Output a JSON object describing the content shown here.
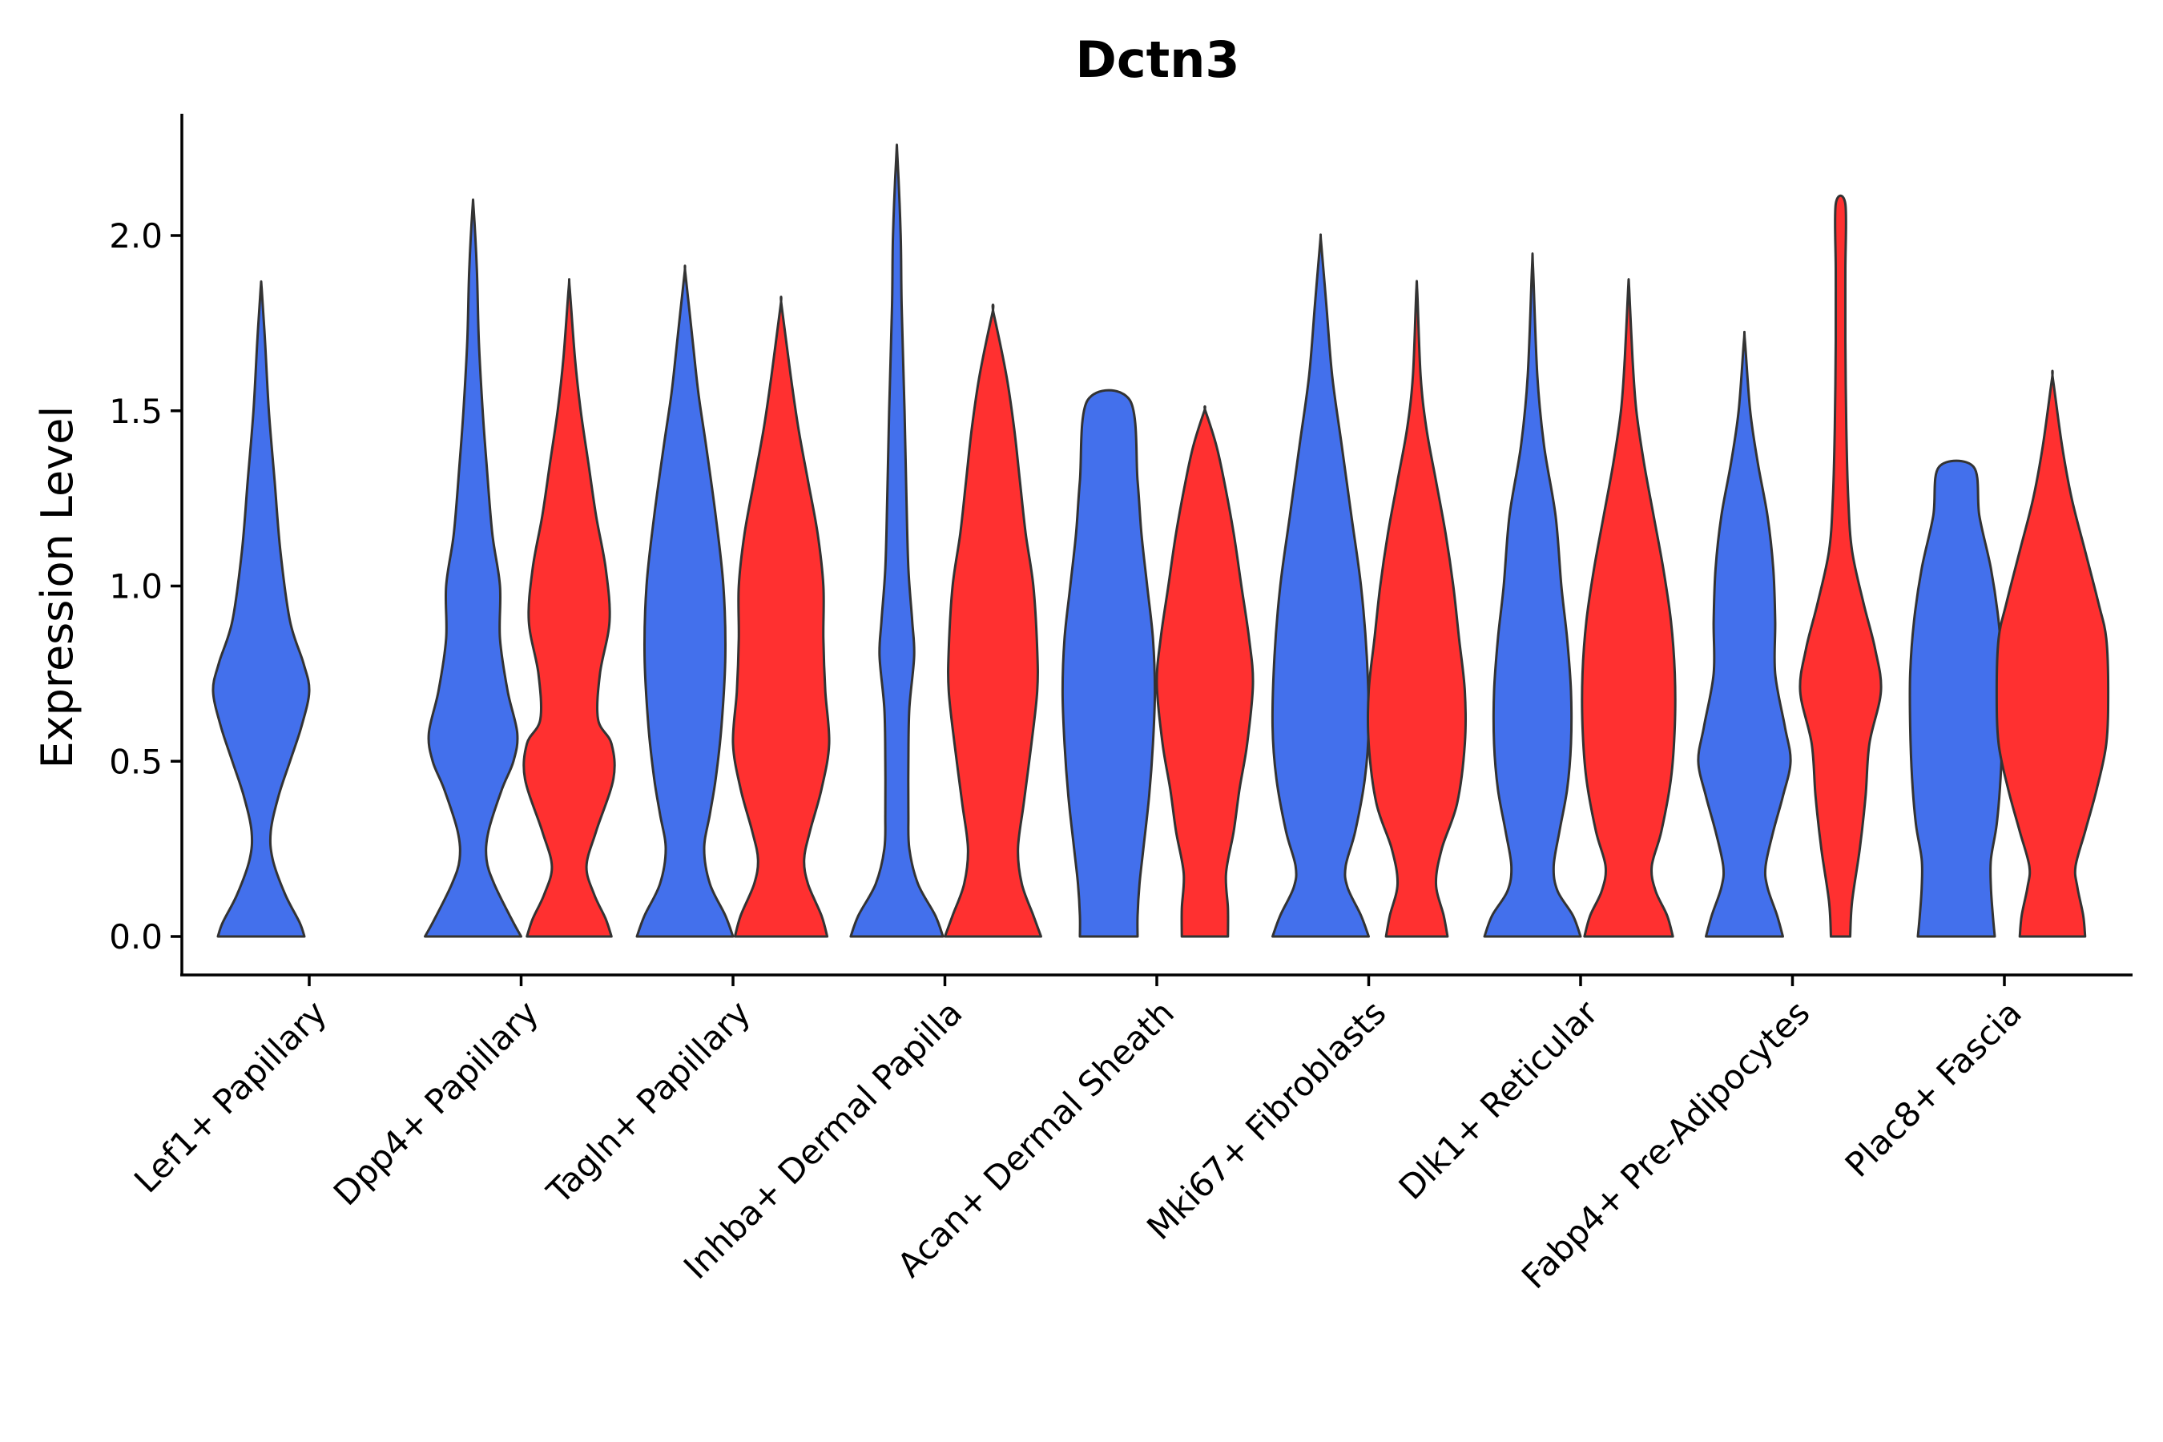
{
  "chart_data": {
    "type": "violin",
    "title": "Dctn3",
    "xlabel": "",
    "ylabel": "Expression Level",
    "ylim": [
      -0.11,
      2.35
    ],
    "yticks": [
      0.0,
      0.5,
      1.0,
      1.5,
      2.0
    ],
    "ytick_labels": [
      "0.0",
      "0.5",
      "1.0",
      "1.5",
      "2.0"
    ],
    "colors": {
      "group1": "#4370EC",
      "group2": "#FF3030"
    },
    "categories": [
      "Lef1+ Papillary",
      "Dpp4+ Papillary",
      "Tagln+ Papillary",
      "Inhba+ Dermal Papilla",
      "Acan+ Dermal Sheath",
      "Mki67+ Fibroblasts",
      "Dlk1+ Reticular",
      "Fabp4+ Pre-Adipocytes",
      "Plac8+ Fascia"
    ],
    "violins": [
      {
        "category": "Lef1+ Papillary",
        "group": 1,
        "max": 1.85,
        "profile": [
          [
            0,
            0.45
          ],
          [
            0.04,
            0.4
          ],
          [
            0.12,
            0.25
          ],
          [
            0.22,
            0.12
          ],
          [
            0.3,
            0.1
          ],
          [
            0.4,
            0.18
          ],
          [
            0.5,
            0.3
          ],
          [
            0.6,
            0.42
          ],
          [
            0.7,
            0.5
          ],
          [
            0.78,
            0.44
          ],
          [
            0.9,
            0.3
          ],
          [
            1.1,
            0.2
          ],
          [
            1.3,
            0.14
          ],
          [
            1.5,
            0.08
          ],
          [
            1.7,
            0.04
          ],
          [
            1.85,
            0.005
          ]
        ]
      },
      {
        "category": "Dpp4+ Papillary",
        "group": 1,
        "max": 2.08,
        "profile": [
          [
            0,
            0.5
          ],
          [
            0.05,
            0.4
          ],
          [
            0.15,
            0.22
          ],
          [
            0.22,
            0.14
          ],
          [
            0.3,
            0.16
          ],
          [
            0.42,
            0.3
          ],
          [
            0.5,
            0.42
          ],
          [
            0.58,
            0.46
          ],
          [
            0.7,
            0.36
          ],
          [
            0.85,
            0.28
          ],
          [
            1.0,
            0.28
          ],
          [
            1.15,
            0.2
          ],
          [
            1.35,
            0.14
          ],
          [
            1.5,
            0.1
          ],
          [
            1.7,
            0.06
          ],
          [
            1.9,
            0.04
          ],
          [
            2.08,
            0.005
          ]
        ]
      },
      {
        "category": "Dpp4+ Papillary",
        "group": 2,
        "max": 1.85,
        "profile": [
          [
            0,
            0.44
          ],
          [
            0.05,
            0.38
          ],
          [
            0.12,
            0.26
          ],
          [
            0.2,
            0.18
          ],
          [
            0.3,
            0.28
          ],
          [
            0.45,
            0.46
          ],
          [
            0.55,
            0.44
          ],
          [
            0.62,
            0.3
          ],
          [
            0.75,
            0.32
          ],
          [
            0.9,
            0.42
          ],
          [
            1.05,
            0.38
          ],
          [
            1.2,
            0.28
          ],
          [
            1.35,
            0.2
          ],
          [
            1.5,
            0.12
          ],
          [
            1.65,
            0.06
          ],
          [
            1.85,
            0.005
          ]
        ]
      },
      {
        "category": "Tagln+ Papillary",
        "group": 1,
        "max": 1.89,
        "profile": [
          [
            0,
            0.5
          ],
          [
            0.06,
            0.42
          ],
          [
            0.15,
            0.26
          ],
          [
            0.25,
            0.2
          ],
          [
            0.35,
            0.26
          ],
          [
            0.45,
            0.32
          ],
          [
            0.6,
            0.38
          ],
          [
            0.8,
            0.42
          ],
          [
            1.0,
            0.4
          ],
          [
            1.2,
            0.32
          ],
          [
            1.4,
            0.22
          ],
          [
            1.55,
            0.14
          ],
          [
            1.7,
            0.08
          ],
          [
            1.89,
            0.005
          ]
        ]
      },
      {
        "category": "Tagln+ Papillary",
        "group": 2,
        "max": 1.8,
        "profile": [
          [
            0,
            0.48
          ],
          [
            0.06,
            0.42
          ],
          [
            0.15,
            0.28
          ],
          [
            0.22,
            0.24
          ],
          [
            0.3,
            0.3
          ],
          [
            0.42,
            0.42
          ],
          [
            0.55,
            0.5
          ],
          [
            0.7,
            0.46
          ],
          [
            0.85,
            0.44
          ],
          [
            1.0,
            0.44
          ],
          [
            1.15,
            0.38
          ],
          [
            1.3,
            0.28
          ],
          [
            1.45,
            0.18
          ],
          [
            1.6,
            0.1
          ],
          [
            1.8,
            0.005
          ]
        ]
      },
      {
        "category": "Inhba+ Dermal Papilla",
        "group": 1,
        "max": 2.23,
        "profile": [
          [
            0,
            0.48
          ],
          [
            0.06,
            0.4
          ],
          [
            0.15,
            0.22
          ],
          [
            0.25,
            0.13
          ],
          [
            0.35,
            0.12
          ],
          [
            0.5,
            0.12
          ],
          [
            0.65,
            0.13
          ],
          [
            0.8,
            0.18
          ],
          [
            0.9,
            0.16
          ],
          [
            1.05,
            0.12
          ],
          [
            1.25,
            0.1
          ],
          [
            1.5,
            0.08
          ],
          [
            1.8,
            0.05
          ],
          [
            2.0,
            0.04
          ],
          [
            2.23,
            0.005
          ]
        ]
      },
      {
        "category": "Inhba+ Dermal Papilla",
        "group": 2,
        "max": 1.78,
        "profile": [
          [
            0,
            0.5
          ],
          [
            0.06,
            0.42
          ],
          [
            0.15,
            0.3
          ],
          [
            0.25,
            0.26
          ],
          [
            0.38,
            0.32
          ],
          [
            0.55,
            0.4
          ],
          [
            0.7,
            0.46
          ],
          [
            0.82,
            0.46
          ],
          [
            1.0,
            0.42
          ],
          [
            1.15,
            0.34
          ],
          [
            1.3,
            0.28
          ],
          [
            1.45,
            0.22
          ],
          [
            1.6,
            0.14
          ],
          [
            1.78,
            0.005
          ]
        ]
      },
      {
        "category": "Acan+ Dermal Sheath",
        "group": 1,
        "max": 1.53,
        "profile": [
          [
            0,
            0.3
          ],
          [
            0.06,
            0.3
          ],
          [
            0.15,
            0.32
          ],
          [
            0.25,
            0.36
          ],
          [
            0.4,
            0.42
          ],
          [
            0.55,
            0.46
          ],
          [
            0.7,
            0.48
          ],
          [
            0.85,
            0.46
          ],
          [
            1.0,
            0.4
          ],
          [
            1.15,
            0.34
          ],
          [
            1.3,
            0.3
          ],
          [
            1.53,
            0.22
          ]
        ]
      },
      {
        "category": "Acan+ Dermal Sheath",
        "group": 2,
        "max": 1.5,
        "profile": [
          [
            0,
            0.24
          ],
          [
            0.08,
            0.24
          ],
          [
            0.18,
            0.22
          ],
          [
            0.3,
            0.3
          ],
          [
            0.42,
            0.36
          ],
          [
            0.55,
            0.44
          ],
          [
            0.72,
            0.5
          ],
          [
            0.85,
            0.46
          ],
          [
            1.0,
            0.38
          ],
          [
            1.15,
            0.3
          ],
          [
            1.3,
            0.2
          ],
          [
            1.4,
            0.12
          ],
          [
            1.5,
            0.005
          ]
        ]
      },
      {
        "category": "Mki67+ Fibroblasts",
        "group": 1,
        "max": 1.98,
        "profile": [
          [
            0,
            0.5
          ],
          [
            0.06,
            0.42
          ],
          [
            0.14,
            0.28
          ],
          [
            0.2,
            0.26
          ],
          [
            0.3,
            0.36
          ],
          [
            0.45,
            0.46
          ],
          [
            0.6,
            0.5
          ],
          [
            0.8,
            0.48
          ],
          [
            1.0,
            0.42
          ],
          [
            1.2,
            0.32
          ],
          [
            1.4,
            0.22
          ],
          [
            1.6,
            0.12
          ],
          [
            1.8,
            0.06
          ],
          [
            1.98,
            0.005
          ]
        ]
      },
      {
        "category": "Mki67+ Fibroblasts",
        "group": 2,
        "max": 1.84,
        "profile": [
          [
            0,
            0.32
          ],
          [
            0.06,
            0.28
          ],
          [
            0.15,
            0.2
          ],
          [
            0.25,
            0.26
          ],
          [
            0.38,
            0.42
          ],
          [
            0.55,
            0.5
          ],
          [
            0.7,
            0.5
          ],
          [
            0.85,
            0.44
          ],
          [
            1.0,
            0.38
          ],
          [
            1.15,
            0.3
          ],
          [
            1.3,
            0.2
          ],
          [
            1.45,
            0.1
          ],
          [
            1.6,
            0.04
          ],
          [
            1.84,
            0.005
          ]
        ]
      },
      {
        "category": "Dlk1+ Reticular",
        "group": 1,
        "max": 1.91,
        "profile": [
          [
            0,
            0.5
          ],
          [
            0.06,
            0.42
          ],
          [
            0.13,
            0.26
          ],
          [
            0.2,
            0.22
          ],
          [
            0.3,
            0.28
          ],
          [
            0.42,
            0.36
          ],
          [
            0.55,
            0.4
          ],
          [
            0.7,
            0.4
          ],
          [
            0.85,
            0.36
          ],
          [
            1.0,
            0.3
          ],
          [
            1.2,
            0.24
          ],
          [
            1.4,
            0.12
          ],
          [
            1.6,
            0.05
          ],
          [
            1.91,
            0.005
          ]
        ]
      },
      {
        "category": "Dlk1+ Reticular",
        "group": 2,
        "max": 1.85,
        "profile": [
          [
            0,
            0.46
          ],
          [
            0.06,
            0.4
          ],
          [
            0.13,
            0.28
          ],
          [
            0.2,
            0.24
          ],
          [
            0.3,
            0.34
          ],
          [
            0.45,
            0.44
          ],
          [
            0.6,
            0.48
          ],
          [
            0.75,
            0.48
          ],
          [
            0.9,
            0.44
          ],
          [
            1.05,
            0.36
          ],
          [
            1.2,
            0.26
          ],
          [
            1.35,
            0.16
          ],
          [
            1.5,
            0.08
          ],
          [
            1.65,
            0.04
          ],
          [
            1.85,
            0.005
          ]
        ]
      },
      {
        "category": "Fabp4+ Pre-Adipocytes",
        "group": 1,
        "max": 1.7,
        "profile": [
          [
            0,
            0.4
          ],
          [
            0.06,
            0.34
          ],
          [
            0.14,
            0.24
          ],
          [
            0.2,
            0.22
          ],
          [
            0.3,
            0.3
          ],
          [
            0.4,
            0.4
          ],
          [
            0.5,
            0.48
          ],
          [
            0.6,
            0.42
          ],
          [
            0.75,
            0.32
          ],
          [
            0.9,
            0.32
          ],
          [
            1.05,
            0.3
          ],
          [
            1.2,
            0.24
          ],
          [
            1.35,
            0.14
          ],
          [
            1.5,
            0.06
          ],
          [
            1.7,
            0.005
          ]
        ]
      },
      {
        "category": "Fabp4+ Pre-Adipocytes",
        "group": 2,
        "max": 2.09,
        "profile": [
          [
            0,
            0.1
          ],
          [
            0.1,
            0.12
          ],
          [
            0.25,
            0.2
          ],
          [
            0.4,
            0.26
          ],
          [
            0.55,
            0.3
          ],
          [
            0.7,
            0.42
          ],
          [
            0.82,
            0.36
          ],
          [
            0.95,
            0.24
          ],
          [
            1.1,
            0.12
          ],
          [
            1.25,
            0.08
          ],
          [
            1.45,
            0.06
          ],
          [
            1.7,
            0.05
          ],
          [
            1.9,
            0.05
          ],
          [
            2.09,
            0.05
          ]
        ]
      },
      {
        "category": "Plac8+ Fascia",
        "group": 1,
        "max": 1.34,
        "profile": [
          [
            0,
            0.4
          ],
          [
            0.06,
            0.38
          ],
          [
            0.14,
            0.36
          ],
          [
            0.22,
            0.36
          ],
          [
            0.32,
            0.42
          ],
          [
            0.45,
            0.46
          ],
          [
            0.6,
            0.48
          ],
          [
            0.75,
            0.48
          ],
          [
            0.9,
            0.44
          ],
          [
            1.05,
            0.36
          ],
          [
            1.2,
            0.24
          ],
          [
            1.34,
            0.18
          ]
        ]
      },
      {
        "category": "Plac8+ Fascia",
        "group": 2,
        "max": 1.59,
        "profile": [
          [
            0,
            0.34
          ],
          [
            0.06,
            0.32
          ],
          [
            0.14,
            0.26
          ],
          [
            0.2,
            0.24
          ],
          [
            0.3,
            0.34
          ],
          [
            0.42,
            0.46
          ],
          [
            0.55,
            0.56
          ],
          [
            0.7,
            0.58
          ],
          [
            0.85,
            0.56
          ],
          [
            0.95,
            0.48
          ],
          [
            1.1,
            0.34
          ],
          [
            1.25,
            0.2
          ],
          [
            1.4,
            0.1
          ],
          [
            1.59,
            0.005
          ]
        ]
      }
    ]
  }
}
